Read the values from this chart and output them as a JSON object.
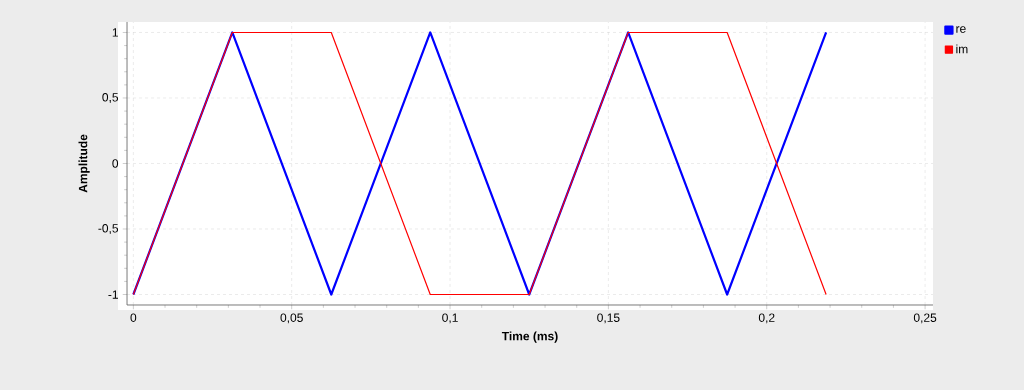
{
  "chart_data": {
    "type": "line",
    "xlabel": "Time (ms)",
    "ylabel": "Amplitude",
    "x": [
      0,
      0.03125,
      0.0625,
      0.09375,
      0.125,
      0.15625,
      0.1875,
      0.21875
    ],
    "series": [
      {
        "name": "re",
        "color": "#0000ff",
        "values": [
          -1,
          1,
          -1,
          1,
          -1,
          1,
          -1,
          1
        ]
      },
      {
        "name": "im",
        "color": "#ff0000",
        "values": [
          -1,
          1,
          1,
          -1,
          -1,
          1,
          1,
          -1
        ]
      }
    ],
    "xlim": [
      -0.002,
      0.2525
    ],
    "ylim": [
      -1.08,
      1.08
    ],
    "xticks": [
      0,
      {
        "value": 0.05,
        "label": "0,05"
      },
      {
        "value": 0.1,
        "label": "0,1"
      },
      {
        "value": 0.15,
        "label": "0,15"
      },
      {
        "value": 0.2,
        "label": "0,2"
      },
      {
        "value": 0.25,
        "label": "0,25"
      }
    ],
    "yticks": [
      -1,
      {
        "value": -0.5,
        "label": "-0,5"
      },
      0,
      {
        "value": 0.5,
        "label": "0,5"
      },
      1
    ],
    "grid": true,
    "legend": "top right",
    "line_style": "solid",
    "marker": "none"
  }
}
